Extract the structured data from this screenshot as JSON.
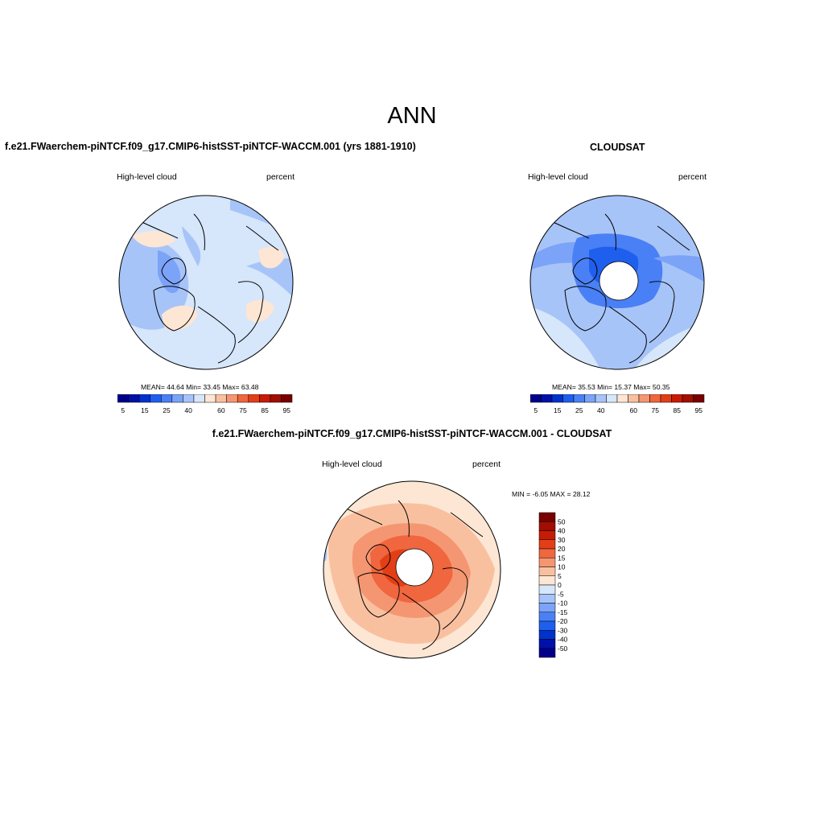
{
  "title": "ANN",
  "panels": [
    {
      "title": "f.e21.FWaerchem-piNTCF.f09_g17.CMIP6-histSST-piNTCF-WACCM.001 (yrs 1881-1910)",
      "left_label": "High-level cloud",
      "right_label": "percent",
      "stats": "MEAN=  44.64  Min=  33.45  Max=  63.48"
    },
    {
      "title": "CLOUDSAT",
      "left_label": "High-level cloud",
      "right_label": "percent",
      "stats": "MEAN=  35.53  Min=  15.37  Max=  50.35"
    },
    {
      "title": "f.e21.FWaerchem-piNTCF.f09_g17.CMIP6-histSST-piNTCF-WACCM.001 - CLOUDSAT",
      "left_label": "High-level cloud",
      "right_label": "percent",
      "stats": "MIN =  -6.05 MAX =  28.12"
    }
  ],
  "colorbar_abs": {
    "labels": [
      "5",
      "15",
      "25",
      "40",
      "60",
      "75",
      "85",
      "95"
    ],
    "colors": [
      "#00008b",
      "#0010a8",
      "#0033cc",
      "#1f5fee",
      "#4a80f5",
      "#7ba3f7",
      "#a7c4f8",
      "#d6e6fb",
      "#fde6d3",
      "#f9c0a0",
      "#f59672",
      "#f0663e",
      "#e23f16",
      "#c81b05",
      "#a00f02",
      "#780000"
    ]
  },
  "colorbar_diff": {
    "labels": [
      "50",
      "40",
      "30",
      "20",
      "15",
      "10",
      "5",
      "0",
      "-5",
      "-10",
      "-15",
      "-20",
      "-30",
      "-40",
      "-50"
    ],
    "colors": [
      "#780000",
      "#a00f02",
      "#c81b05",
      "#e23f16",
      "#f0663e",
      "#f59672",
      "#f9c0a0",
      "#fde6d3",
      "#d6e6fb",
      "#a7c4f8",
      "#7ba3f7",
      "#4a80f5",
      "#1f5fee",
      "#0033cc",
      "#0010a8",
      "#00008b"
    ]
  }
}
